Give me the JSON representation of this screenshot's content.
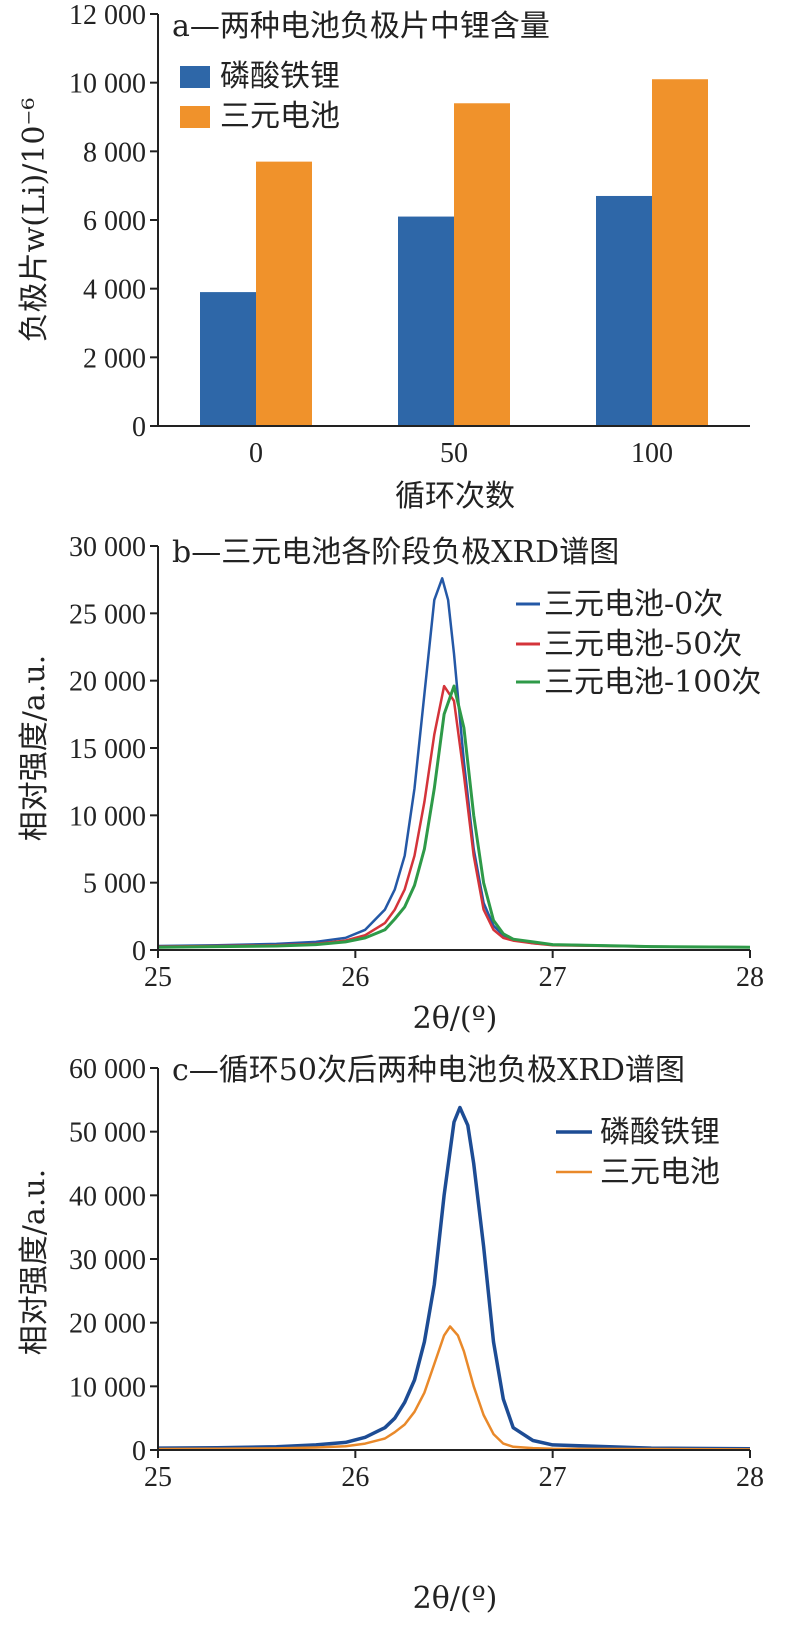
{
  "chart_data": [
    {
      "type": "bar",
      "title": "a—两种电池负极片中锂含量",
      "xlabel": "循环次数",
      "ylabel": "负极片w(Li)/10⁻⁶",
      "categories": [
        "0",
        "50",
        "100"
      ],
      "ylim": [
        0,
        12000
      ],
      "yticks": [
        "0",
        "2 000",
        "4 000",
        "6 000",
        "8 000",
        "10 000",
        "12 000"
      ],
      "series": [
        {
          "name": "磷酸铁锂",
          "color": "#2e67a8",
          "values": [
            3900,
            6100,
            6700
          ]
        },
        {
          "name": "三元电池",
          "color": "#f0922b",
          "values": [
            7700,
            9400,
            10100
          ]
        }
      ],
      "legend": "top-left"
    },
    {
      "type": "line",
      "title": "b—三元电池各阶段负极XRD谱图",
      "xlabel": "2θ/(º)",
      "ylabel": "相对强度/a.u.",
      "xlim": [
        25,
        28
      ],
      "ylim": [
        0,
        30000
      ],
      "xticks": [
        "25",
        "26",
        "27",
        "28"
      ],
      "yticks": [
        "0",
        "5 000",
        "10 000",
        "15 000",
        "20 000",
        "25 000",
        "30 000"
      ],
      "legend": "top-right",
      "series": [
        {
          "name": "三元电池-0次",
          "color": "#2458a6",
          "x": [
            25.0,
            25.3,
            25.6,
            25.8,
            25.95,
            26.05,
            26.15,
            26.2,
            26.25,
            26.3,
            26.35,
            26.4,
            26.44,
            26.47,
            26.5,
            26.55,
            26.6,
            26.65,
            26.7,
            26.75,
            26.8,
            26.9,
            27.0,
            27.5,
            28.0
          ],
          "y": [
            300,
            350,
            450,
            600,
            900,
            1500,
            3000,
            4500,
            7000,
            12000,
            19000,
            26000,
            27600,
            26000,
            22000,
            14000,
            7500,
            3500,
            1800,
            1100,
            800,
            500,
            400,
            250,
            200
          ]
        },
        {
          "name": "三元电池-50次",
          "color": "#d4343a",
          "x": [
            25.0,
            25.3,
            25.6,
            25.8,
            25.95,
            26.05,
            26.15,
            26.2,
            26.25,
            26.3,
            26.35,
            26.4,
            26.45,
            26.5,
            26.55,
            26.6,
            26.65,
            26.7,
            26.75,
            26.8,
            26.9,
            27.0,
            27.5,
            28.0
          ],
          "y": [
            250,
            300,
            350,
            450,
            700,
            1100,
            2000,
            3000,
            4500,
            7000,
            11000,
            16000,
            19600,
            18500,
            13000,
            7000,
            3000,
            1500,
            900,
            700,
            500,
            350,
            250,
            200
          ]
        },
        {
          "name": "三元电池-100次",
          "color": "#2e9a48",
          "x": [
            25.0,
            25.3,
            25.6,
            25.8,
            25.95,
            26.05,
            26.15,
            26.2,
            26.25,
            26.3,
            26.35,
            26.4,
            26.45,
            26.5,
            26.55,
            26.6,
            26.65,
            26.7,
            26.75,
            26.8,
            26.9,
            27.0,
            27.5,
            28.0
          ],
          "y": [
            200,
            250,
            300,
            400,
            600,
            900,
            1500,
            2300,
            3200,
            4800,
            7500,
            12000,
            17500,
            19600,
            16500,
            10000,
            5000,
            2200,
            1200,
            800,
            600,
            400,
            250,
            200
          ]
        }
      ]
    },
    {
      "type": "line",
      "title": "c—循环50次后两种电池负极XRD谱图",
      "xlabel": "2θ/(º)",
      "ylabel": "相对强度/a.u.",
      "xlim": [
        25,
        28
      ],
      "ylim": [
        0,
        60000
      ],
      "xticks": [
        "25",
        "26",
        "27",
        "28"
      ],
      "yticks": [
        "0",
        "10 000",
        "20 000",
        "30 000",
        "40 000",
        "50 000",
        "60 000"
      ],
      "legend": "top-right",
      "series": [
        {
          "name": "磷酸铁锂",
          "color": "#1d4c94",
          "x": [
            25.0,
            25.3,
            25.6,
            25.8,
            25.95,
            26.05,
            26.15,
            26.2,
            26.25,
            26.3,
            26.35,
            26.4,
            26.45,
            26.5,
            26.53,
            26.57,
            26.6,
            26.65,
            26.7,
            26.75,
            26.8,
            26.9,
            27.0,
            27.5,
            28.0
          ],
          "y": [
            300,
            350,
            500,
            800,
            1200,
            2000,
            3500,
            5000,
            7500,
            11000,
            17000,
            26000,
            40000,
            51500,
            53800,
            51000,
            45000,
            32000,
            17000,
            8000,
            3500,
            1500,
            800,
            300,
            200
          ]
        },
        {
          "name": "三元电池",
          "color": "#e9892a",
          "x": [
            25.0,
            25.3,
            25.6,
            25.8,
            25.95,
            26.05,
            26.15,
            26.2,
            26.25,
            26.3,
            26.35,
            26.4,
            26.45,
            26.48,
            26.52,
            26.55,
            26.6,
            26.65,
            26.7,
            26.75,
            26.8,
            26.9,
            27.0,
            27.5,
            28.0
          ],
          "y": [
            150,
            200,
            250,
            400,
            600,
            1000,
            1800,
            2800,
            4000,
            6000,
            9000,
            13500,
            18000,
            19400,
            18000,
            15500,
            10000,
            5500,
            2500,
            1000,
            500,
            300,
            200,
            150,
            100
          ]
        }
      ]
    }
  ]
}
